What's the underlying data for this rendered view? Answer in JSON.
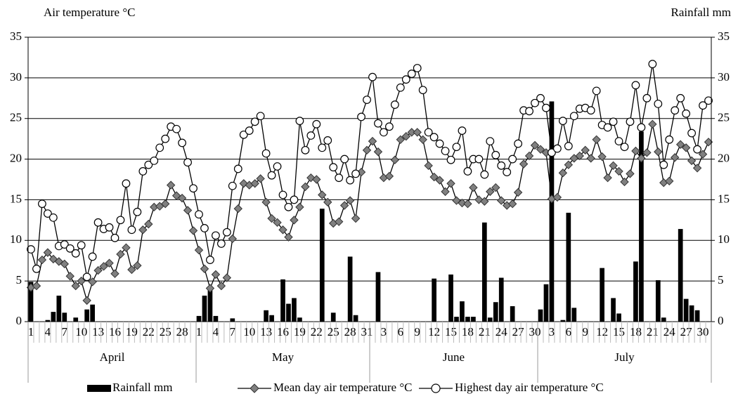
{
  "chart_data": {
    "type": "combo",
    "y_label": "Air temperature  °C",
    "y2_label": "Rainfall mm",
    "categories": [
      "1",
      null,
      null,
      "4",
      null,
      null,
      "7",
      null,
      null,
      "10",
      null,
      null,
      "13",
      null,
      null,
      "16",
      null,
      null,
      "19",
      null,
      null,
      "22",
      null,
      null,
      "25",
      null,
      null,
      "28",
      null,
      null,
      "1",
      null,
      null,
      "4",
      null,
      null,
      "7",
      null,
      null,
      "10",
      null,
      null,
      "13",
      null,
      null,
      "16",
      null,
      null,
      "19",
      null,
      null,
      "22",
      null,
      null,
      "25",
      null,
      null,
      "28",
      null,
      null,
      "31",
      null,
      null,
      "3",
      null,
      null,
      "6",
      null,
      null,
      "9",
      null,
      null,
      "12",
      null,
      null,
      "15",
      null,
      null,
      "18",
      null,
      null,
      "21",
      null,
      null,
      "24",
      null,
      null,
      "27",
      null,
      null,
      "30",
      null,
      null,
      "3",
      null,
      null,
      "6",
      null,
      null,
      "9",
      null,
      null,
      "12",
      null,
      null,
      "15",
      null,
      null,
      "18",
      null,
      null,
      "21",
      null,
      null,
      "24",
      null,
      null,
      "27",
      null,
      null,
      "30",
      null
    ],
    "x_groups": [
      "April",
      "May",
      "June",
      "July"
    ],
    "ylim": [
      0,
      35
    ],
    "yticks": [
      0,
      5,
      10,
      15,
      20,
      25,
      30,
      35
    ],
    "y2lim": [
      0,
      35
    ],
    "y2ticks": [
      0,
      5,
      10,
      15,
      20,
      25,
      30,
      35
    ],
    "grid": true,
    "legend": "bottom",
    "series": [
      {
        "name": "Rainfall mm",
        "type": "bar",
        "axis": "y2",
        "color": "#000000",
        "values": [
          4.9,
          0,
          0,
          0.2,
          1.2,
          3.2,
          1.1,
          0,
          0.5,
          0,
          1.5,
          2.1,
          0,
          0,
          0,
          0,
          0,
          0,
          0,
          0,
          0,
          0,
          0,
          0,
          0,
          0,
          0,
          0,
          0,
          0,
          0.7,
          3.2,
          4.2,
          0.7,
          0,
          0,
          0.4,
          0,
          0,
          0,
          0,
          0,
          1.4,
          0.8,
          0,
          5.2,
          2.2,
          2.9,
          0.5,
          0,
          0,
          0,
          13.9,
          0,
          1.1,
          0,
          0,
          8.0,
          0.8,
          0,
          0,
          0,
          6.1,
          0,
          0,
          0,
          0,
          0,
          0,
          0,
          0,
          0,
          5.3,
          0,
          0,
          5.8,
          0.6,
          2.5,
          0.6,
          0.6,
          0,
          12.2,
          0.5,
          2.4,
          5.4,
          0,
          1.9,
          0,
          0,
          0,
          0,
          1.5,
          4.6,
          27.1,
          0,
          0.2,
          13.4,
          1.7,
          0,
          0,
          0,
          0,
          6.6,
          0,
          2.9,
          1.0,
          0,
          0,
          7.4,
          23.4,
          0,
          0,
          5.1,
          0.5,
          0,
          0,
          11.4,
          2.8,
          2.0,
          1.4,
          0,
          0
        ]
      },
      {
        "name": "Mean day air temperature °C",
        "type": "line",
        "marker": "diamond",
        "color": "#808080",
        "values": [
          4.2,
          4.4,
          7.6,
          8.5,
          7.7,
          7.4,
          7.1,
          5.6,
          4.4,
          5.0,
          2.6,
          4.9,
          6.3,
          6.8,
          7.2,
          5.9,
          8.3,
          9.1,
          6.4,
          6.9,
          11.3,
          12.0,
          14.1,
          14.2,
          14.5,
          16.8,
          15.5,
          15.2,
          13.7,
          11.2,
          8.8,
          6.5,
          4.1,
          5.8,
          4.4,
          5.4,
          10.2,
          13.9,
          17.0,
          16.8,
          17.0,
          17.6,
          14.7,
          12.7,
          12.2,
          11.3,
          10.4,
          12.5,
          14.1,
          16.6,
          17.7,
          17.5,
          15.6,
          14.7,
          12.1,
          12.3,
          14.3,
          14.9,
          12.7,
          18.4,
          21.1,
          22.2,
          20.9,
          17.7,
          17.9,
          19.9,
          22.4,
          22.8,
          23.3,
          23.3,
          22.4,
          19.2,
          17.8,
          17.4,
          16.0,
          17.0,
          14.9,
          14.6,
          14.5,
          16.5,
          15.0,
          14.8,
          16.0,
          16.5,
          14.9,
          14.3,
          14.5,
          15.9,
          19.4,
          20.4,
          21.7,
          21.2,
          20.8,
          15.1,
          15.3,
          18.3,
          19.3,
          20.1,
          20.4,
          21.1,
          20.1,
          22.4,
          20.3,
          17.7,
          19.2,
          18.5,
          17.2,
          18.2,
          21.0,
          20.1,
          20.8,
          24.3,
          20.9,
          17.1,
          17.3,
          20.2,
          21.8,
          21.4,
          19.8,
          18.9,
          20.6,
          22.1
        ]
      },
      {
        "name": "Highest day air temperature °C",
        "type": "line",
        "marker": "circle",
        "color": "#ffffff",
        "values": [
          8.9,
          6.5,
          14.5,
          13.3,
          12.8,
          9.3,
          9.5,
          9.0,
          8.4,
          9.4,
          5.5,
          8.0,
          12.2,
          11.4,
          11.6,
          10.3,
          12.5,
          17.0,
          11.3,
          13.5,
          18.5,
          19.3,
          19.8,
          21.4,
          22.5,
          24.0,
          23.7,
          22.0,
          19.6,
          16.4,
          13.2,
          11.5,
          7.6,
          10.6,
          9.6,
          11.0,
          16.7,
          18.8,
          23.0,
          23.5,
          24.6,
          25.3,
          20.7,
          18.0,
          19.1,
          15.6,
          14.1,
          15.0,
          24.7,
          21.1,
          22.9,
          24.3,
          21.4,
          22.3,
          19.0,
          17.7,
          20.0,
          17.4,
          18.2,
          25.2,
          27.3,
          30.1,
          24.4,
          23.3,
          24.0,
          26.7,
          28.8,
          29.8,
          30.5,
          31.2,
          28.5,
          23.3,
          22.7,
          21.9,
          21.0,
          19.9,
          21.5,
          23.5,
          18.5,
          20.0,
          20.0,
          18.1,
          22.2,
          20.5,
          19.2,
          18.4,
          20.0,
          21.9,
          26.0,
          25.9,
          26.9,
          27.5,
          26.3,
          20.8,
          21.3,
          24.7,
          21.6,
          25.3,
          26.2,
          26.3,
          26.0,
          28.4,
          24.2,
          23.9,
          24.6,
          22.2,
          21.5,
          24.6,
          29.1,
          23.9,
          27.5,
          31.7,
          26.8,
          19.3,
          22.4,
          26.0,
          27.5,
          25.6,
          23.2,
          21.2,
          26.6,
          27.2
        ]
      }
    ]
  }
}
